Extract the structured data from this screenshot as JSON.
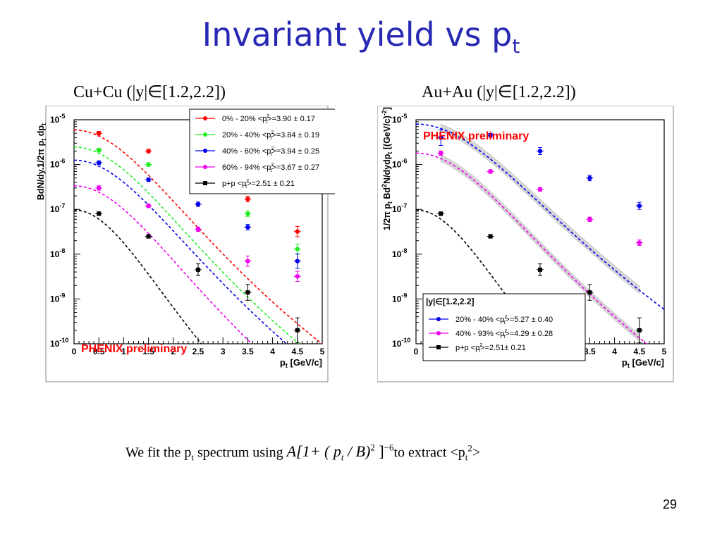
{
  "slide": {
    "title_main": "Invariant yield vs p",
    "title_sub": "t",
    "left_panel_title": "Cu+Cu (|y|∈[1.2,2.2])",
    "right_panel_title": "Au+Au (|y|∈[1.2,2.2])",
    "footer_prefix": "We fit the p",
    "footer_prefix_sub": "t",
    "footer_mid": " spectrum using ",
    "footer_formula_a": "A[1+ ( p",
    "footer_formula_t": "t",
    "footer_formula_b": " / B)",
    "footer_formula_sup2": "2",
    "footer_formula_c": " ]",
    "footer_formula_exp": "−6",
    "footer_suffix": "to extract <p",
    "footer_suffix_sub": "t",
    "footer_suffix_sup": "2",
    "footer_suffix_end": ">",
    "page_number": "29"
  },
  "colors": {
    "title": "#2828b4",
    "red": "#ff0000",
    "green": "#22ee22",
    "blue": "#0000ee",
    "magenta": "#ee00ee",
    "black": "#000000",
    "phenix": "#ff0000"
  },
  "chart_data": [
    {
      "type": "scatter",
      "title": "Cu+Cu (|y|∈[1.2,2.2])",
      "xlabel": "p_t [GeV/c]",
      "ylabel": "BdN/dy.1/2π p_t dp_t",
      "xlim": [
        0,
        5
      ],
      "ylim": [
        1e-10,
        1e-05
      ],
      "yscale": "log",
      "xticks": [
        "0",
        "0.5",
        "1",
        "1.5",
        "2",
        "2.5",
        "3",
        "3.5",
        "4",
        "4.5",
        "5"
      ],
      "yticks": [
        "10-5",
        "10-6",
        "10-7",
        "10-8",
        "10-9",
        "10-10"
      ],
      "annotation": "PHENIX preliminary",
      "legend_position": "top-right",
      "series": [
        {
          "name": "0% - 20% <pt2>=3.90 ± 0.17",
          "color": "red",
          "x": [
            0.5,
            1.5,
            2.5,
            3.5,
            4.5
          ],
          "y": [
            5e-06,
            2e-06,
            7e-07,
            1.7e-07,
            3.2e-08
          ],
          "fit": {
            "A": 5.9e-06,
            "B2": 4.76
          }
        },
        {
          "name": "20% - 40% <pt2>=3.84 ± 0.19",
          "color": "green",
          "x": [
            0.5,
            1.5,
            2.5,
            3.5,
            4.5
          ],
          "y": [
            2.1e-06,
            1e-06,
            3.4e-07,
            8e-08,
            1.3e-08
          ],
          "fit": {
            "A": 2.45e-06,
            "B2": 4.68
          }
        },
        {
          "name": "40% - 60% <pt2>=3.94 ± 0.25",
          "color": "blue",
          "x": [
            0.5,
            1.5,
            2.5,
            3.5,
            4.5
          ],
          "y": [
            1.1e-06,
            4.6e-07,
            1.3e-07,
            4e-08,
            7e-09
          ],
          "fit": {
            "A": 1.25e-06,
            "B2": 4.8
          }
        },
        {
          "name": "60% - 94% <pt2>=3.67 ± 0.27",
          "color": "magenta",
          "x": [
            0.5,
            1.5,
            2.5,
            3.5,
            4.5
          ],
          "y": [
            3e-07,
            1.2e-07,
            3.6e-08,
            7e-09,
            3.2e-09
          ],
          "fit": {
            "A": 3.35e-07,
            "B2": 4.47
          }
        },
        {
          "name": "p+p <pt2>=2.51 ± 0.21",
          "color": "black",
          "x": [
            0.5,
            1.5,
            2.5,
            3.5,
            4.5
          ],
          "y": [
            8e-08,
            2.5e-08,
            4.5e-09,
            1.4e-09,
            2e-10
          ],
          "fit": {
            "A": 9.7e-08,
            "B2": 3.06
          }
        }
      ]
    },
    {
      "type": "scatter",
      "title": "Au+Au (|y|∈[1.2,2.2])",
      "xlabel": "p_t [GeV/c]",
      "ylabel": "1/2π p_t Bd2N/dydp_t [(GeV/c)-2]",
      "xlim": [
        0,
        5
      ],
      "ylim": [
        1e-10,
        1e-05
      ],
      "yscale": "log",
      "xticks": [
        "0",
        "0.5",
        "1",
        "1.5",
        "2",
        "2.5",
        "3",
        "3.5",
        "4",
        "4.5",
        "5"
      ],
      "yticks": [
        "10-5",
        "10-6",
        "10-7",
        "10-8",
        "10-9",
        "10-10"
      ],
      "annotation": "PHENIX preliminary",
      "legend_title": "|y|∈[1.2,2.2]",
      "legend_position": "bottom-left",
      "series": [
        {
          "name": "20% - 40% <pt2>=5.27 ± 0.40",
          "color": "blue",
          "x": [
            0.5,
            1.5,
            2.5,
            3.5,
            4.5
          ],
          "y": [
            4e-06,
            4.5e-06,
            2e-06,
            5e-07,
            1.2e-07
          ],
          "fit": {
            "A": 8e-06,
            "B2": 6.43
          }
        },
        {
          "name": "40% - 93% <pt2>=4.29 ± 0.28",
          "color": "magenta",
          "x": [
            0.5,
            1.5,
            2.5,
            3.5,
            4.5
          ],
          "y": [
            1.8e-06,
            7e-07,
            2.8e-07,
            6e-08,
            1.8e-08
          ],
          "fit": {
            "A": 1.8e-06,
            "B2": 5.23
          }
        },
        {
          "name": "p+p <pt2>=2.51± 0.21",
          "color": "black",
          "x": [
            0.5,
            1.5,
            2.5,
            3.5,
            4.5
          ],
          "y": [
            8e-08,
            2.5e-08,
            4.5e-09,
            1.4e-09,
            2e-10
          ],
          "fit": {
            "A": 9.7e-08,
            "B2": 3.06
          }
        }
      ]
    }
  ]
}
